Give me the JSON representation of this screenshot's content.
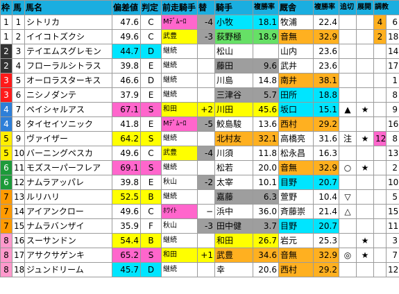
{
  "headers": [
    "枠",
    "馬",
    "馬名",
    "偏差値",
    "判定",
    "前走騎手",
    "替",
    "騎手",
    "複勝率",
    "厩舎",
    "複勝率",
    "追切",
    "展開",
    "調教"
  ],
  "rows": [
    {
      "waku": "1",
      "uma": "1",
      "name": "シトリカ",
      "hensachi": "47.6",
      "hantei": "C",
      "zenso": "Mﾃﾞﾑｰﾛ",
      "kae": "-4",
      "kishu": "小牧",
      "kishu_rate": "18.1",
      "kyusha": "牧浦",
      "kyusha_rate": "22.4",
      "oikiri": "",
      "tenkai": "",
      "chokyo": "4",
      "chokyo2": "6"
    },
    {
      "waku": "1",
      "uma": "2",
      "name": "イイコトズクシ",
      "hensachi": "49.6",
      "hantei": "C",
      "zenso": "武豊",
      "kae": "-3",
      "kishu": "荻野極",
      "kishu_rate": "18.9",
      "kyusha": "音無",
      "kyusha_rate": "32.9",
      "oikiri": "",
      "tenkai": "",
      "chokyo": "2",
      "chokyo2": "18"
    },
    {
      "waku": "2",
      "uma": "3",
      "name": "テイエムスグレモン",
      "hensachi": "44.7",
      "hantei": "D",
      "zenso": "継続",
      "kae": "",
      "kishu": "松山",
      "kishu_rate": "",
      "kyusha": "山内",
      "kyusha_rate": "23.6",
      "oikiri": "",
      "tenkai": "",
      "chokyo": "",
      "chokyo2": "14"
    },
    {
      "waku": "2",
      "uma": "4",
      "name": "フローラルシトラス",
      "hensachi": "39.8",
      "hantei": "E",
      "zenso": "継続",
      "kae": "",
      "kishu": "藤田",
      "kishu_rate": "9.6",
      "kyusha": "武井",
      "kyusha_rate": "23.6",
      "oikiri": "",
      "tenkai": "",
      "chokyo": "",
      "chokyo2": "17"
    },
    {
      "waku": "3",
      "uma": "5",
      "name": "オーロラスターキス",
      "hensachi": "46.6",
      "hantei": "D",
      "zenso": "継続",
      "kae": "",
      "kishu": "川島",
      "kishu_rate": "14.8",
      "kyusha": "南井",
      "kyusha_rate": "38.1",
      "oikiri": "",
      "tenkai": "",
      "chokyo": "",
      "chokyo2": "1"
    },
    {
      "waku": "3",
      "uma": "6",
      "name": "ニシノダンテ",
      "hensachi": "37.9",
      "hantei": "E",
      "zenso": "継続",
      "kae": "",
      "kishu": "三津谷",
      "kishu_rate": "5.7",
      "kyusha": "田所",
      "kyusha_rate": "18.8",
      "oikiri": "",
      "tenkai": "",
      "chokyo": "",
      "chokyo2": "8"
    },
    {
      "waku": "4",
      "uma": "7",
      "name": "ペイシャルアス",
      "hensachi": "67.1",
      "hantei": "S",
      "zenso": "和田",
      "kae": "+2",
      "kishu": "川田",
      "kishu_rate": "45.6",
      "kyusha": "坂口",
      "kyusha_rate": "15.1",
      "oikiri": "▲",
      "tenkai": "★",
      "chokyo": "",
      "chokyo2": "9"
    },
    {
      "waku": "4",
      "uma": "8",
      "name": "タイセイソニック",
      "hensachi": "41.8",
      "hantei": "E",
      "zenso": "Mﾃﾞﾑｰﾛ",
      "kae": "-5",
      "kishu": "鮫島駿",
      "kishu_rate": "13.6",
      "kyusha": "西村",
      "kyusha_rate": "29.2",
      "oikiri": "",
      "tenkai": "",
      "chokyo": "",
      "chokyo2": "16"
    },
    {
      "waku": "5",
      "uma": "9",
      "name": "ヴァイザー",
      "hensachi": "64.2",
      "hantei": "S",
      "zenso": "継続",
      "kae": "",
      "kishu": "北村友",
      "kishu_rate": "32.1",
      "kyusha": "高橋亮",
      "kyusha_rate": "31.6",
      "oikiri": "注",
      "tenkai": "★",
      "chokyo": "12",
      "chokyo2": "8"
    },
    {
      "waku": "5",
      "uma": "10",
      "name": "バーニングペスカ",
      "hensachi": "49.6",
      "hantei": "C",
      "zenso": "武豊",
      "kae": "-4",
      "kishu": "川須",
      "kishu_rate": "11.8",
      "kyusha": "松永昌",
      "kyusha_rate": "16.3",
      "oikiri": "",
      "tenkai": "",
      "chokyo": "",
      "chokyo2": "13"
    },
    {
      "waku": "6",
      "uma": "11",
      "name": "モズスーパーフレア",
      "hensachi": "69.1",
      "hantei": "S",
      "zenso": "継続",
      "kae": "",
      "kishu": "松若",
      "kishu_rate": "20.0",
      "kyusha": "音無",
      "kyusha_rate": "32.9",
      "oikiri": "○",
      "tenkai": "★",
      "chokyo": "",
      "chokyo2": "2"
    },
    {
      "waku": "6",
      "uma": "12",
      "name": "ナムラアッパレ",
      "hensachi": "39.8",
      "hantei": "E",
      "zenso": "秋山",
      "kae": "-2",
      "kishu": "太宰",
      "kishu_rate": "10.1",
      "kyusha": "目野",
      "kyusha_rate": "20.7",
      "oikiri": "",
      "tenkai": "",
      "chokyo": "",
      "chokyo2": "10"
    },
    {
      "waku": "7",
      "uma": "13",
      "name": "ルリハリ",
      "hensachi": "52.5",
      "hantei": "B",
      "zenso": "継続",
      "kae": "",
      "kishu": "嘉藤",
      "kishu_rate": "6.3",
      "kyusha": "萱野",
      "kyusha_rate": "10.4",
      "oikiri": "▽",
      "tenkai": "",
      "chokyo": "",
      "chokyo2": "5"
    },
    {
      "waku": "7",
      "uma": "14",
      "name": "アイアンクロー",
      "hensachi": "49.6",
      "hantei": "C",
      "zenso": "ﾎﾜｲﾄ",
      "kae": "−",
      "kishu": "浜中",
      "kishu_rate": "36.0",
      "kyusha": "斉藤崇",
      "kyusha_rate": "21.4",
      "oikiri": "△",
      "tenkai": "",
      "chokyo": "",
      "chokyo2": "15"
    },
    {
      "waku": "7",
      "uma": "15",
      "name": "ナムラバンザイ",
      "hensachi": "35.9",
      "hantei": "F",
      "zenso": "秋山",
      "kae": "-3",
      "kishu": "田中健",
      "kishu_rate": "3.7",
      "kyusha": "目野",
      "kyusha_rate": "20.7",
      "oikiri": "",
      "tenkai": "",
      "chokyo": "",
      "chokyo2": "11"
    },
    {
      "waku": "8",
      "uma": "16",
      "name": "スーサンドン",
      "hensachi": "54.4",
      "hantei": "B",
      "zenso": "継続",
      "kae": "",
      "kishu": "和田",
      "kishu_rate": "26.7",
      "kyusha": "岩元",
      "kyusha_rate": "25.3",
      "oikiri": "",
      "tenkai": "★",
      "chokyo": "",
      "chokyo2": "3"
    },
    {
      "waku": "8",
      "uma": "17",
      "name": "アサクサゲンキ",
      "hensachi": "65.2",
      "hantei": "S",
      "zenso": "和田",
      "kae": "+1",
      "kishu": "武豊",
      "kishu_rate": "34.6",
      "kyusha": "音無",
      "kyusha_rate": "32.9",
      "oikiri": "◎",
      "tenkai": "★",
      "chokyo": "",
      "chokyo2": "7"
    },
    {
      "waku": "8",
      "uma": "18",
      "name": "ジュンドリーム",
      "hensachi": "45.7",
      "hantei": "D",
      "zenso": "継続",
      "kae": "",
      "kishu": "幸",
      "kishu_rate": "20.6",
      "kyusha": "西村",
      "kyusha_rate": "29.2",
      "oikiri": "",
      "tenkai": "",
      "chokyo": "",
      "chokyo2": "12"
    }
  ],
  "colors": {
    "header": "#1aaee0",
    "waku": {
      "1": "#ffffff",
      "2": "#333333",
      "3": "#ff1a1a",
      "4": "#2e7fd8",
      "5": "#ffee00",
      "6": "#1d9a3a",
      "7": "#ff9a00",
      "8": "#ff99cc"
    }
  }
}
